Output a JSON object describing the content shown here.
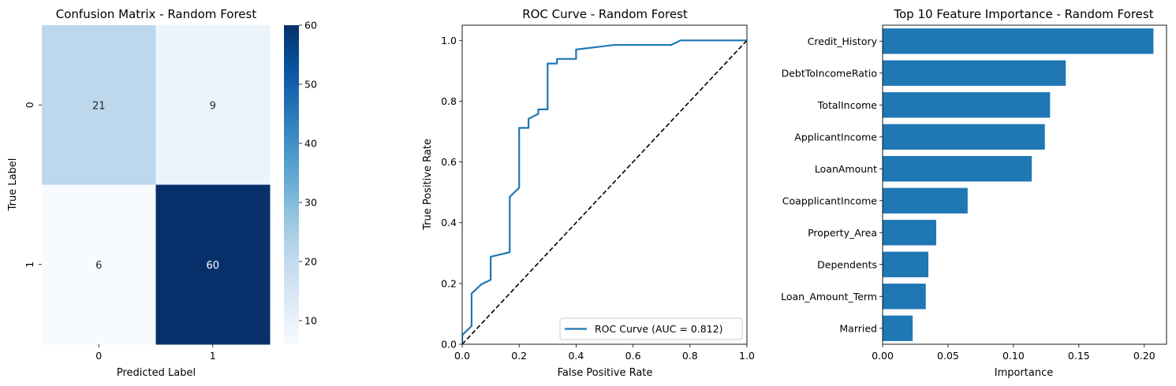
{
  "chart_data": [
    {
      "type": "heatmap",
      "title": "Confusion Matrix - Random Forest",
      "xlabel": "Predicted Label",
      "ylabel": "True Label",
      "x_categories": [
        "0",
        "1"
      ],
      "y_categories": [
        "0",
        "1"
      ],
      "values": [
        [
          21,
          9
        ],
        [
          6,
          60
        ]
      ],
      "colormap": "Blues",
      "colorbar": {
        "min": 6,
        "max": 60,
        "ticks": [
          10,
          20,
          30,
          40,
          50,
          60
        ]
      }
    },
    {
      "type": "line",
      "title": "ROC Curve - Random Forest",
      "xlabel": "False Positive Rate",
      "ylabel": "True Positive Rate",
      "xlim": [
        0,
        1
      ],
      "ylim": [
        0,
        1.05
      ],
      "xticks": [
        0.0,
        0.2,
        0.4,
        0.6,
        0.8,
        1.0
      ],
      "yticks": [
        0.0,
        0.2,
        0.4,
        0.6,
        0.8,
        1.0
      ],
      "series": [
        {
          "name": "ROC Curve (AUC = 0.812)",
          "color": "#1f77b4",
          "style": "solid",
          "x": [
            0,
            0,
            0.033,
            0.033,
            0.067,
            0.1,
            0.1,
            0.167,
            0.167,
            0.2,
            0.2,
            0.233,
            0.233,
            0.267,
            0.267,
            0.3,
            0.3,
            0.333,
            0.333,
            0.4,
            0.4,
            0.533,
            0.733,
            0.767,
            1.0
          ],
          "y": [
            0,
            0.03,
            0.06,
            0.167,
            0.197,
            0.212,
            0.288,
            0.303,
            0.485,
            0.515,
            0.712,
            0.712,
            0.742,
            0.758,
            0.773,
            0.773,
            0.924,
            0.924,
            0.939,
            0.939,
            0.97,
            0.985,
            0.985,
            1.0,
            1.0
          ]
        },
        {
          "name": "",
          "color": "#000000",
          "style": "dashed",
          "x": [
            0,
            1
          ],
          "y": [
            0,
            1
          ]
        }
      ],
      "legend_position": "bottom-right"
    },
    {
      "type": "bar",
      "orientation": "horizontal",
      "title": "Top 10 Feature Importance - Random Forest",
      "xlabel": "Importance",
      "ylabel": "",
      "color": "#1f77b4",
      "categories": [
        "Credit_History",
        "DebtToIncomeRatio",
        "TotalIncome",
        "ApplicantIncome",
        "LoanAmount",
        "CoapplicantIncome",
        "Property_Area",
        "Dependents",
        "Loan_Amount_Term",
        "Married"
      ],
      "values": [
        0.207,
        0.14,
        0.128,
        0.124,
        0.114,
        0.065,
        0.041,
        0.035,
        0.033,
        0.023
      ],
      "xlim": [
        0,
        0.217
      ],
      "xticks": [
        0.0,
        0.05,
        0.1,
        0.15,
        0.2
      ],
      "xtick_labels": [
        "0.00",
        "0.05",
        "0.10",
        "0.15",
        "0.20"
      ]
    }
  ]
}
